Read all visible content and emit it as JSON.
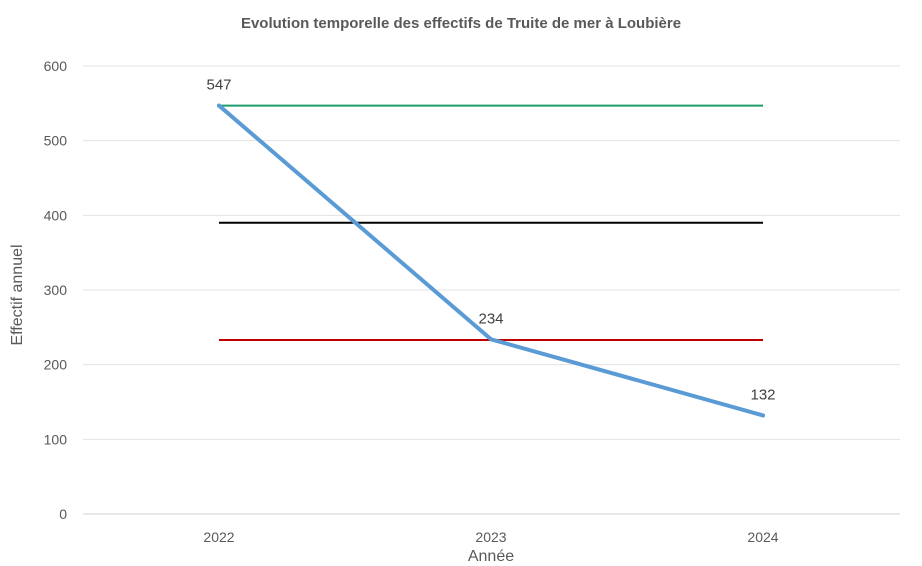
{
  "chart_data": {
    "type": "line",
    "title": "Evolution temporelle des effectifs de Truite de mer à Loubière",
    "xlabel": "Année",
    "ylabel": "Effectif annuel",
    "categories": [
      "2022",
      "2023",
      "2024"
    ],
    "ylim": [
      0,
      600
    ],
    "yticks": [
      0,
      100,
      200,
      300,
      400,
      500,
      600
    ],
    "grid": true,
    "series": [
      {
        "values": [
          547,
          234,
          132
        ],
        "color": "#5B9BD5",
        "data_labels": [
          "547",
          "234",
          "132"
        ]
      }
    ],
    "reference_lines": [
      {
        "value": 547,
        "color": "#1E9E6A"
      },
      {
        "value": 390,
        "color": "#000000"
      },
      {
        "value": 233,
        "color": "#C00000"
      }
    ]
  }
}
